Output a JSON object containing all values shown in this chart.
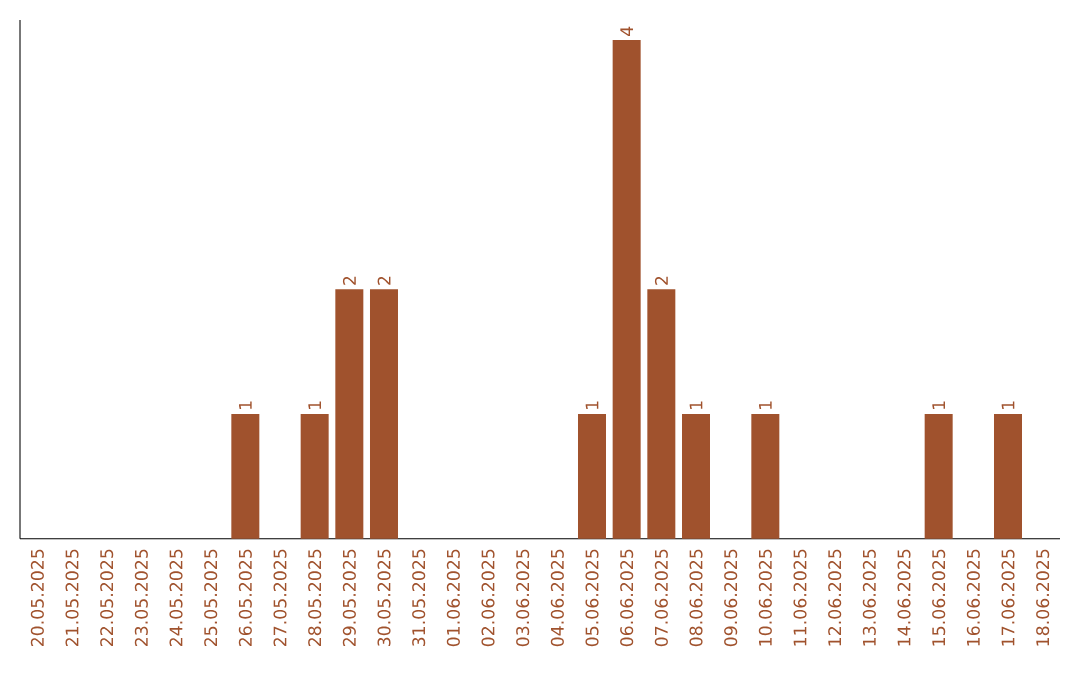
{
  "chart_data": {
    "type": "bar",
    "categories": [
      "20.05.2025",
      "21.05.2025",
      "22.05.2025",
      "23.05.2025",
      "24.05.2025",
      "25.05.2025",
      "26.05.2025",
      "27.05.2025",
      "28.05.2025",
      "29.05.2025",
      "30.05.2025",
      "31.05.2025",
      "01.06.2025",
      "02.06.2025",
      "03.06.2025",
      "04.06.2025",
      "05.06.2025",
      "06.06.2025",
      "07.06.2025",
      "08.06.2025",
      "09.06.2025",
      "10.06.2025",
      "11.06.2025",
      "12.06.2025",
      "13.06.2025",
      "14.06.2025",
      "15.06.2025",
      "16.06.2025",
      "17.06.2025",
      "18.06.2025"
    ],
    "values": [
      0,
      0,
      0,
      0,
      0,
      0,
      1,
      0,
      1,
      2,
      2,
      0,
      0,
      0,
      0,
      0,
      1,
      4,
      2,
      1,
      0,
      1,
      0,
      0,
      0,
      0,
      1,
      0,
      1,
      0
    ],
    "value_labels": [
      null,
      null,
      null,
      null,
      null,
      null,
      "1",
      null,
      "1",
      "2",
      "2",
      null,
      null,
      null,
      null,
      null,
      "1",
      "4",
      "2",
      "1",
      null,
      "1",
      null,
      null,
      null,
      null,
      "1",
      null,
      "1",
      null
    ],
    "color": "#a0522d",
    "grid": false,
    "tick_labels": "x"
  }
}
